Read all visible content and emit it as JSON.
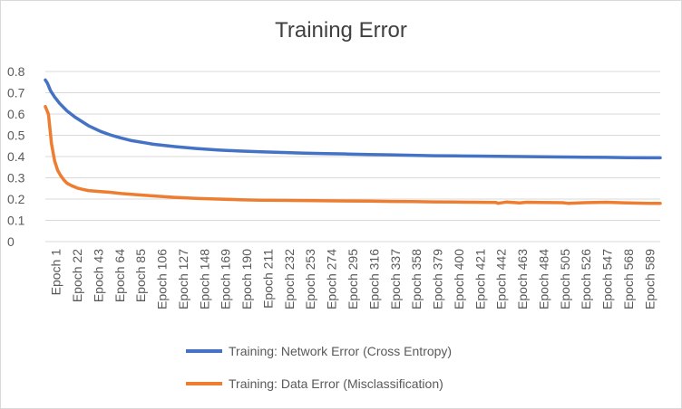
{
  "chart_data": {
    "type": "line",
    "title": "Training Error",
    "xlabel": "",
    "ylabel": "",
    "ylim": [
      0,
      0.8
    ],
    "yticks": [
      "0",
      "0.1",
      "0.2",
      "0.3",
      "0.4",
      "0.5",
      "0.6",
      "0.7",
      "0.8"
    ],
    "x_tick_labels": [
      "Epoch 1",
      "Epoch 22",
      "Epoch 43",
      "Epoch 64",
      "Epoch 85",
      "Epoch 106",
      "Epoch 127",
      "Epoch 148",
      "Epoch 169",
      "Epoch 190",
      "Epoch 211",
      "Epoch 232",
      "Epoch 253",
      "Epoch 274",
      "Epoch 295",
      "Epoch 316",
      "Epoch 337",
      "Epoch 358",
      "Epoch 379",
      "Epoch 400",
      "Epoch 421",
      "Epoch 442",
      "Epoch 463",
      "Epoch 484",
      "Epoch 505",
      "Epoch 526",
      "Epoch 547",
      "Epoch 568",
      "Epoch 589"
    ],
    "x_range": [
      1,
      600
    ],
    "grid": "horizontal",
    "legend_position": "bottom",
    "series": [
      {
        "name": "Training: Network Error (Cross Entropy)",
        "color": "#4472C4",
        "x": [
          1,
          3,
          6,
          10,
          15,
          22,
          30,
          43,
          55,
          64,
          75,
          85,
          100,
          106,
          127,
          148,
          169,
          190,
          211,
          232,
          253,
          274,
          295,
          316,
          337,
          358,
          379,
          400,
          421,
          442,
          463,
          484,
          505,
          526,
          547,
          568,
          589,
          600
        ],
        "values": [
          0.76,
          0.745,
          0.71,
          0.68,
          0.65,
          0.615,
          0.585,
          0.545,
          0.518,
          0.502,
          0.487,
          0.475,
          0.463,
          0.458,
          0.447,
          0.438,
          0.431,
          0.426,
          0.422,
          0.419,
          0.416,
          0.414,
          0.412,
          0.41,
          0.408,
          0.406,
          0.404,
          0.403,
          0.402,
          0.401,
          0.4,
          0.399,
          0.398,
          0.397,
          0.396,
          0.395,
          0.394,
          0.394
        ]
      },
      {
        "name": "Training: Data Error (Misclassification)",
        "color": "#ED7D31",
        "x": [
          1,
          4,
          7,
          10,
          13,
          16,
          19,
          22,
          27,
          32,
          37,
          43,
          55,
          64,
          75,
          85,
          106,
          127,
          148,
          169,
          190,
          211,
          232,
          253,
          274,
          295,
          316,
          337,
          358,
          379,
          400,
          421,
          440,
          442,
          450,
          463,
          470,
          484,
          505,
          510,
          526,
          547,
          568,
          589,
          600
        ],
        "values": [
          0.635,
          0.6,
          0.46,
          0.38,
          0.335,
          0.31,
          0.29,
          0.275,
          0.262,
          0.252,
          0.246,
          0.24,
          0.235,
          0.232,
          0.226,
          0.222,
          0.215,
          0.208,
          0.203,
          0.2,
          0.197,
          0.195,
          0.194,
          0.193,
          0.192,
          0.191,
          0.19,
          0.189,
          0.188,
          0.187,
          0.186,
          0.185,
          0.184,
          0.18,
          0.186,
          0.182,
          0.185,
          0.184,
          0.183,
          0.18,
          0.183,
          0.185,
          0.182,
          0.18,
          0.18
        ]
      }
    ]
  }
}
